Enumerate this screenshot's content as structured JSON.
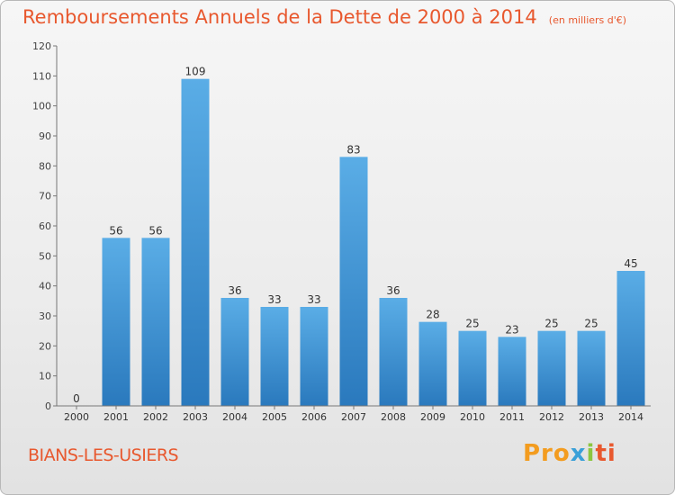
{
  "chart_data": {
    "type": "bar",
    "title": "Remboursements Annuels de la Dette de 2000 à 2014",
    "unit_note": "(en milliers d'€)",
    "categories": [
      "2000",
      "2001",
      "2002",
      "2003",
      "2004",
      "2005",
      "2006",
      "2007",
      "2008",
      "2009",
      "2010",
      "2011",
      "2012",
      "2013",
      "2014"
    ],
    "values": [
      0,
      56,
      56,
      109,
      36,
      33,
      33,
      83,
      36,
      28,
      25,
      23,
      25,
      25,
      45
    ],
    "y_ticks": [
      0,
      10,
      20,
      30,
      40,
      50,
      60,
      70,
      80,
      90,
      100,
      110,
      120
    ],
    "ylim": [
      0,
      120
    ],
    "grid": false,
    "bar_color_top": "#5aade6",
    "bar_color_bottom": "#2a79bd"
  },
  "commune": "BIANS-LES-USIERS",
  "logo": {
    "part1": "Pro",
    "part2": "x",
    "part3": "i",
    "part4": "ti"
  },
  "colors": {
    "title": "#e8582e",
    "axis": "#555555",
    "text": "#333333"
  }
}
